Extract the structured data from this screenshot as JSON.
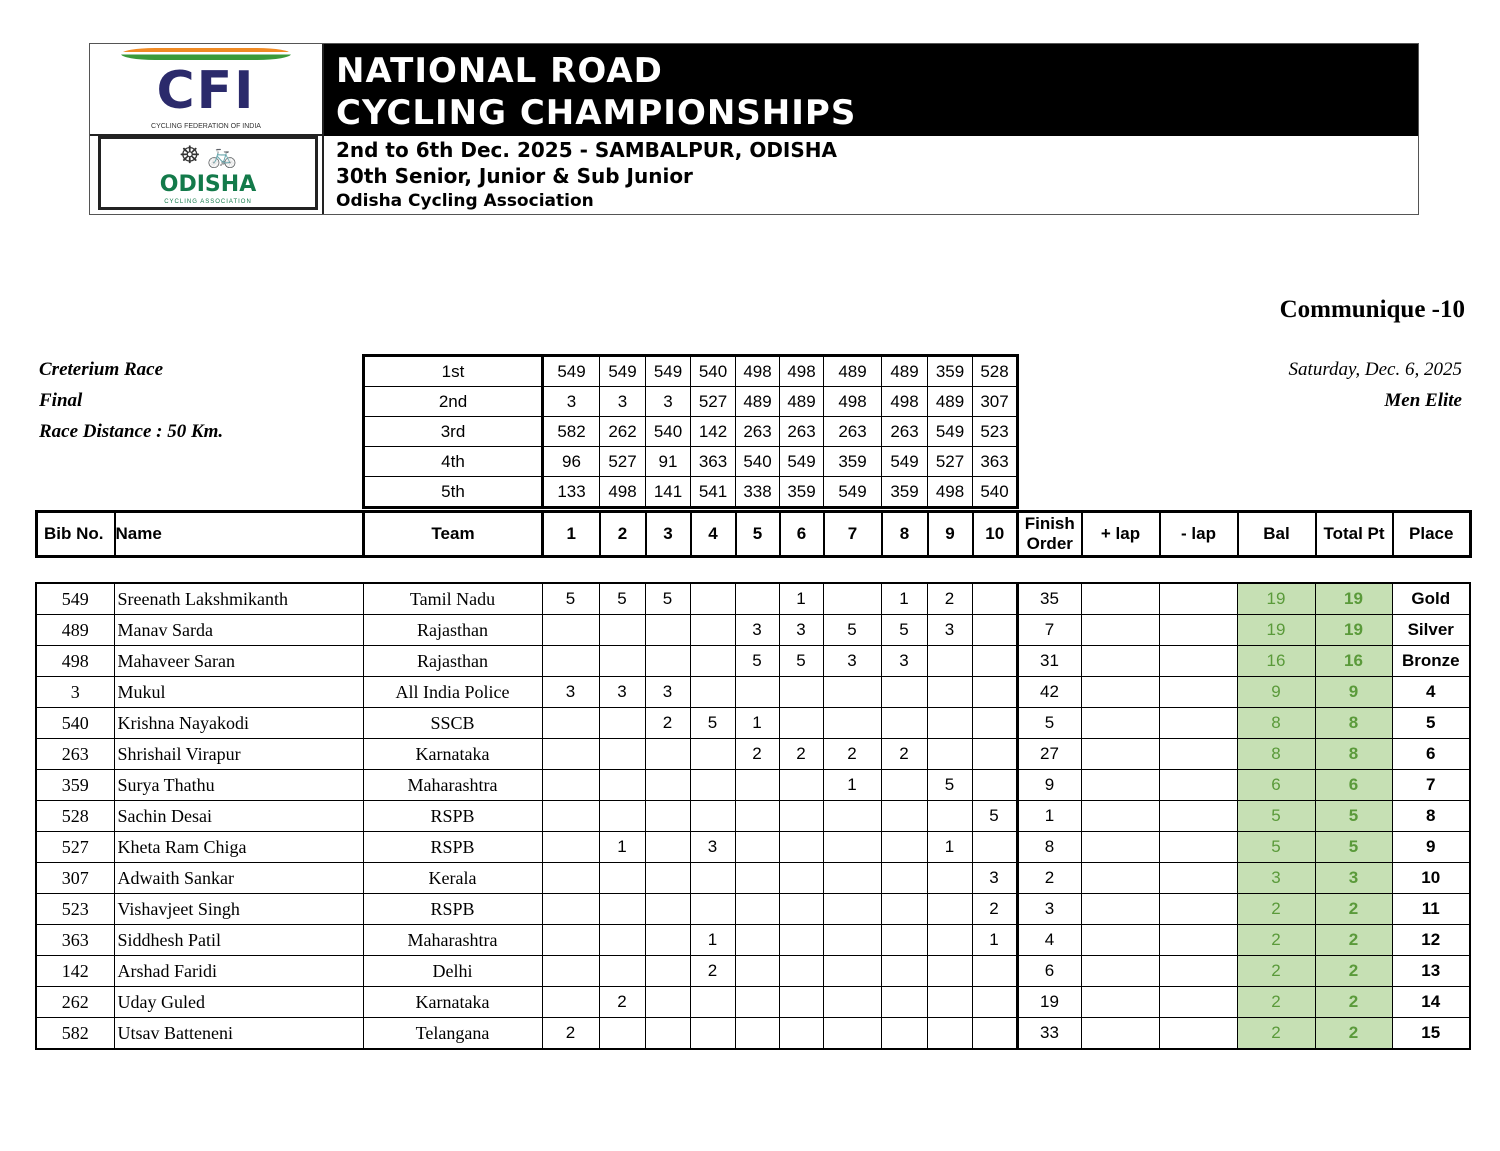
{
  "header": {
    "cfi_logo": "CFI",
    "cfi_logo_sub": "CYCLING FEDERATION OF INDIA",
    "odisha_logo": "ODISHA",
    "odisha_logo_sub": "CYCLING ASSOCIATION",
    "title_line1": "NATIONAL ROAD",
    "title_line2": "CYCLING CHAMPIONSHIPS",
    "dates": "2nd to 6th Dec. 2025 - SAMBALPUR, ODISHA",
    "edition": "30th Senior, Junior & Sub Junior",
    "organizer": "Odisha Cycling Association"
  },
  "communique": "Communique -10",
  "race": {
    "name": "Creterium Race",
    "stage": "Final",
    "distance": "Race Distance : 50 Km.",
    "date": "Saturday, Dec. 6, 2025",
    "category": "Men Elite"
  },
  "sprints": [
    {
      "label": "1st",
      "values": [
        "549",
        "549",
        "549",
        "540",
        "498",
        "498",
        "489",
        "489",
        "359",
        "528"
      ]
    },
    {
      "label": "2nd",
      "values": [
        "3",
        "3",
        "3",
        "527",
        "489",
        "489",
        "498",
        "498",
        "489",
        "307"
      ]
    },
    {
      "label": "3rd",
      "values": [
        "582",
        "262",
        "540",
        "142",
        "263",
        "263",
        "263",
        "263",
        "549",
        "523"
      ]
    },
    {
      "label": "4th",
      "values": [
        "96",
        "527",
        "91",
        "363",
        "540",
        "549",
        "359",
        "549",
        "527",
        "363"
      ]
    },
    {
      "label": "5th",
      "values": [
        "133",
        "498",
        "141",
        "541",
        "338",
        "359",
        "549",
        "359",
        "498",
        "540"
      ]
    }
  ],
  "columns": [
    "Bib No.",
    "Name",
    "Team",
    "1",
    "2",
    "3",
    "4",
    "5",
    "6",
    "7",
    "8",
    "9",
    "10",
    "Finish Order",
    "+ lap",
    "- lap",
    "Bal",
    "Total Pt",
    "Place"
  ],
  "rows": [
    {
      "bib": "549",
      "name": "Sreenath Lakshmikanth",
      "team": "Tamil Nadu",
      "pts": [
        "5",
        "5",
        "5",
        "",
        "",
        "1",
        "",
        "1",
        "2",
        ""
      ],
      "finish": "35",
      "plus_lap": "",
      "minus_lap": "",
      "bal": "19",
      "total": "19",
      "place": "Gold"
    },
    {
      "bib": "489",
      "name": "Manav Sarda",
      "team": "Rajasthan",
      "pts": [
        "",
        "",
        "",
        "",
        "3",
        "3",
        "5",
        "5",
        "3",
        ""
      ],
      "finish": "7",
      "plus_lap": "",
      "minus_lap": "",
      "bal": "19",
      "total": "19",
      "place": "Silver"
    },
    {
      "bib": "498",
      "name": "Mahaveer Saran",
      "team": "Rajasthan",
      "pts": [
        "",
        "",
        "",
        "",
        "5",
        "5",
        "3",
        "3",
        "",
        ""
      ],
      "finish": "31",
      "plus_lap": "",
      "minus_lap": "",
      "bal": "16",
      "total": "16",
      "place": "Bronze"
    },
    {
      "bib": "3",
      "name": "Mukul",
      "team": "All India Police",
      "pts": [
        "3",
        "3",
        "3",
        "",
        "",
        "",
        "",
        "",
        "",
        ""
      ],
      "finish": "42",
      "plus_lap": "",
      "minus_lap": "",
      "bal": "9",
      "total": "9",
      "place": "4"
    },
    {
      "bib": "540",
      "name": "Krishna Nayakodi",
      "team": "SSCB",
      "pts": [
        "",
        "",
        "2",
        "5",
        "1",
        "",
        "",
        "",
        "",
        ""
      ],
      "finish": "5",
      "plus_lap": "",
      "minus_lap": "",
      "bal": "8",
      "total": "8",
      "place": "5"
    },
    {
      "bib": "263",
      "name": "Shrishail  Virapur",
      "team": "Karnataka",
      "pts": [
        "",
        "",
        "",
        "",
        "2",
        "2",
        "2",
        "2",
        "",
        ""
      ],
      "finish": "27",
      "plus_lap": "",
      "minus_lap": "",
      "bal": "8",
      "total": "8",
      "place": "6"
    },
    {
      "bib": "359",
      "name": "Surya Thathu",
      "team": "Maharashtra",
      "pts": [
        "",
        "",
        "",
        "",
        "",
        "",
        "1",
        "",
        "5",
        ""
      ],
      "finish": "9",
      "plus_lap": "",
      "minus_lap": "",
      "bal": "6",
      "total": "6",
      "place": "7"
    },
    {
      "bib": "528",
      "name": "Sachin Desai",
      "team": "RSPB",
      "pts": [
        "",
        "",
        "",
        "",
        "",
        "",
        "",
        "",
        "",
        "5"
      ],
      "finish": "1",
      "plus_lap": "",
      "minus_lap": "",
      "bal": "5",
      "total": "5",
      "place": "8"
    },
    {
      "bib": "527",
      "name": "Kheta Ram Chiga",
      "team": "RSPB",
      "pts": [
        "",
        "1",
        "",
        "3",
        "",
        "",
        "",
        "",
        "1",
        ""
      ],
      "finish": "8",
      "plus_lap": "",
      "minus_lap": "",
      "bal": "5",
      "total": "5",
      "place": "9"
    },
    {
      "bib": "307",
      "name": "Adwaith Sankar",
      "team": "Kerala",
      "pts": [
        "",
        "",
        "",
        "",
        "",
        "",
        "",
        "",
        "",
        "3"
      ],
      "finish": "2",
      "plus_lap": "",
      "minus_lap": "",
      "bal": "3",
      "total": "3",
      "place": "10"
    },
    {
      "bib": "523",
      "name": "Vishavjeet Singh",
      "team": "RSPB",
      "pts": [
        "",
        "",
        "",
        "",
        "",
        "",
        "",
        "",
        "",
        "2"
      ],
      "finish": "3",
      "plus_lap": "",
      "minus_lap": "",
      "bal": "2",
      "total": "2",
      "place": "11"
    },
    {
      "bib": "363",
      "name": "Siddhesh Patil",
      "team": "Maharashtra",
      "pts": [
        "",
        "",
        "",
        "1",
        "",
        "",
        "",
        "",
        "",
        "1"
      ],
      "finish": "4",
      "plus_lap": "",
      "minus_lap": "",
      "bal": "2",
      "total": "2",
      "place": "12"
    },
    {
      "bib": "142",
      "name": "Arshad Faridi",
      "team": "Delhi",
      "pts": [
        "",
        "",
        "",
        "2",
        "",
        "",
        "",
        "",
        "",
        ""
      ],
      "finish": "6",
      "plus_lap": "",
      "minus_lap": "",
      "bal": "2",
      "total": "2",
      "place": "13"
    },
    {
      "bib": "262",
      "name": "Uday  Guled",
      "team": "Karnataka",
      "pts": [
        "",
        "2",
        "",
        "",
        "",
        "",
        "",
        "",
        "",
        ""
      ],
      "finish": "19",
      "plus_lap": "",
      "minus_lap": "",
      "bal": "2",
      "total": "2",
      "place": "14"
    },
    {
      "bib": "582",
      "name": "Utsav Batteneni",
      "team": "Telangana",
      "pts": [
        "2",
        "",
        "",
        "",
        "",
        "",
        "",
        "",
        "",
        ""
      ],
      "finish": "33",
      "plus_lap": "",
      "minus_lap": "",
      "bal": "2",
      "total": "2",
      "place": "15"
    }
  ],
  "colors": {
    "highlight_bg": "#c6e0b4",
    "highlight_text": "#5a9a3a",
    "cfi_blue": "#2b2a6b",
    "odisha_green": "#137a4a"
  }
}
